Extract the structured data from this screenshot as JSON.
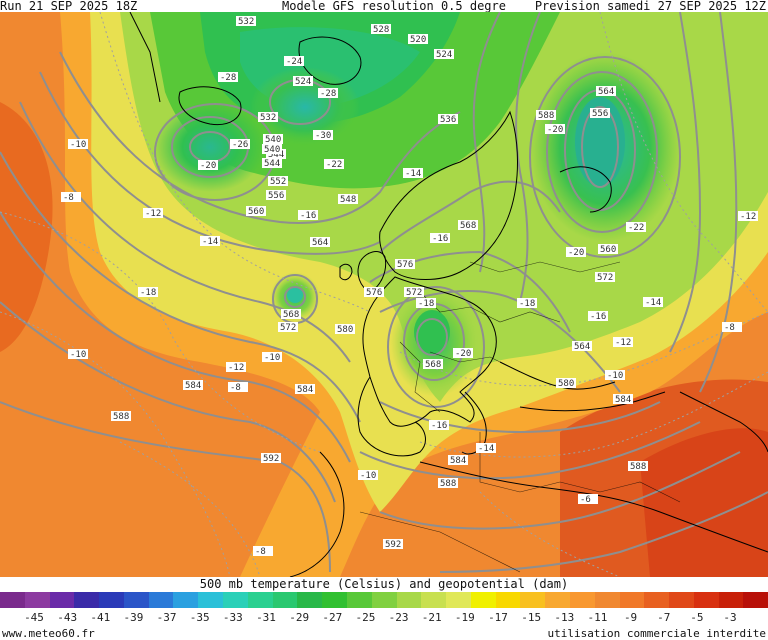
{
  "header": {
    "run": "Run 21 SEP 2025 18Z",
    "model": "Modele GFS resolution 0.5 degre",
    "forecast": "Prevision samedi 27 SEP 2025 12Z"
  },
  "map": {
    "geopotential_labels": [
      "532",
      "528",
      "524",
      "520",
      "524",
      "532",
      "536",
      "540",
      "544",
      "548",
      "552",
      "556",
      "560",
      "564",
      "568",
      "572",
      "576",
      "576",
      "580",
      "584",
      "584",
      "588",
      "588",
      "592",
      "592",
      "588",
      "584",
      "580",
      "572",
      "568",
      "564",
      "584",
      "588",
      "556",
      "560",
      "564",
      "568",
      "572",
      "544",
      "540"
    ],
    "temperature_labels": [
      "-24",
      "-28",
      "-30",
      "-28",
      "-26",
      "-22",
      "-20",
      "-16",
      "-14",
      "-12",
      "-10",
      "-8",
      "-18",
      "-20",
      "-16",
      "-14",
      "-12",
      "-10",
      "-8",
      "-20",
      "-22",
      "-18",
      "-16",
      "-14",
      "-12",
      "-10",
      "-8",
      "-10",
      "-12",
      "-14",
      "-16",
      "-18",
      "-20",
      "-10",
      "-8",
      "-6"
    ]
  },
  "legend": {
    "title": "500 mb temperature (Celsius) and geopotential (dam)",
    "colors": [
      "#7a2a8c",
      "#8c3aa0",
      "#6a2aa8",
      "#3a2aa8",
      "#2a3ab8",
      "#2a55c8",
      "#2a7ad8",
      "#2aa0e0",
      "#2ac0d8",
      "#2ad0b8",
      "#2ad090",
      "#2ac870",
      "#28b848",
      "#30c030",
      "#58c838",
      "#80d040",
      "#a8d848",
      "#c8e050",
      "#e0e858",
      "#f0f000",
      "#f8d800",
      "#f8c020",
      "#f8a830",
      "#f89830",
      "#f08830",
      "#f07828",
      "#e86020",
      "#e04818",
      "#d83010",
      "#c82008",
      "#b81008"
    ],
    "ticks": [
      "-45",
      "-43",
      "-41",
      "-39",
      "-37",
      "-35",
      "-33",
      "-31",
      "-29",
      "-27",
      "-25",
      "-23",
      "-21",
      "-19",
      "-17",
      "-15",
      "-13",
      "-11",
      "-9",
      "-7",
      "-5",
      "-3"
    ]
  },
  "footer": {
    "site": "www.meteo60.fr",
    "notice": "utilisation commerciale interdite"
  }
}
